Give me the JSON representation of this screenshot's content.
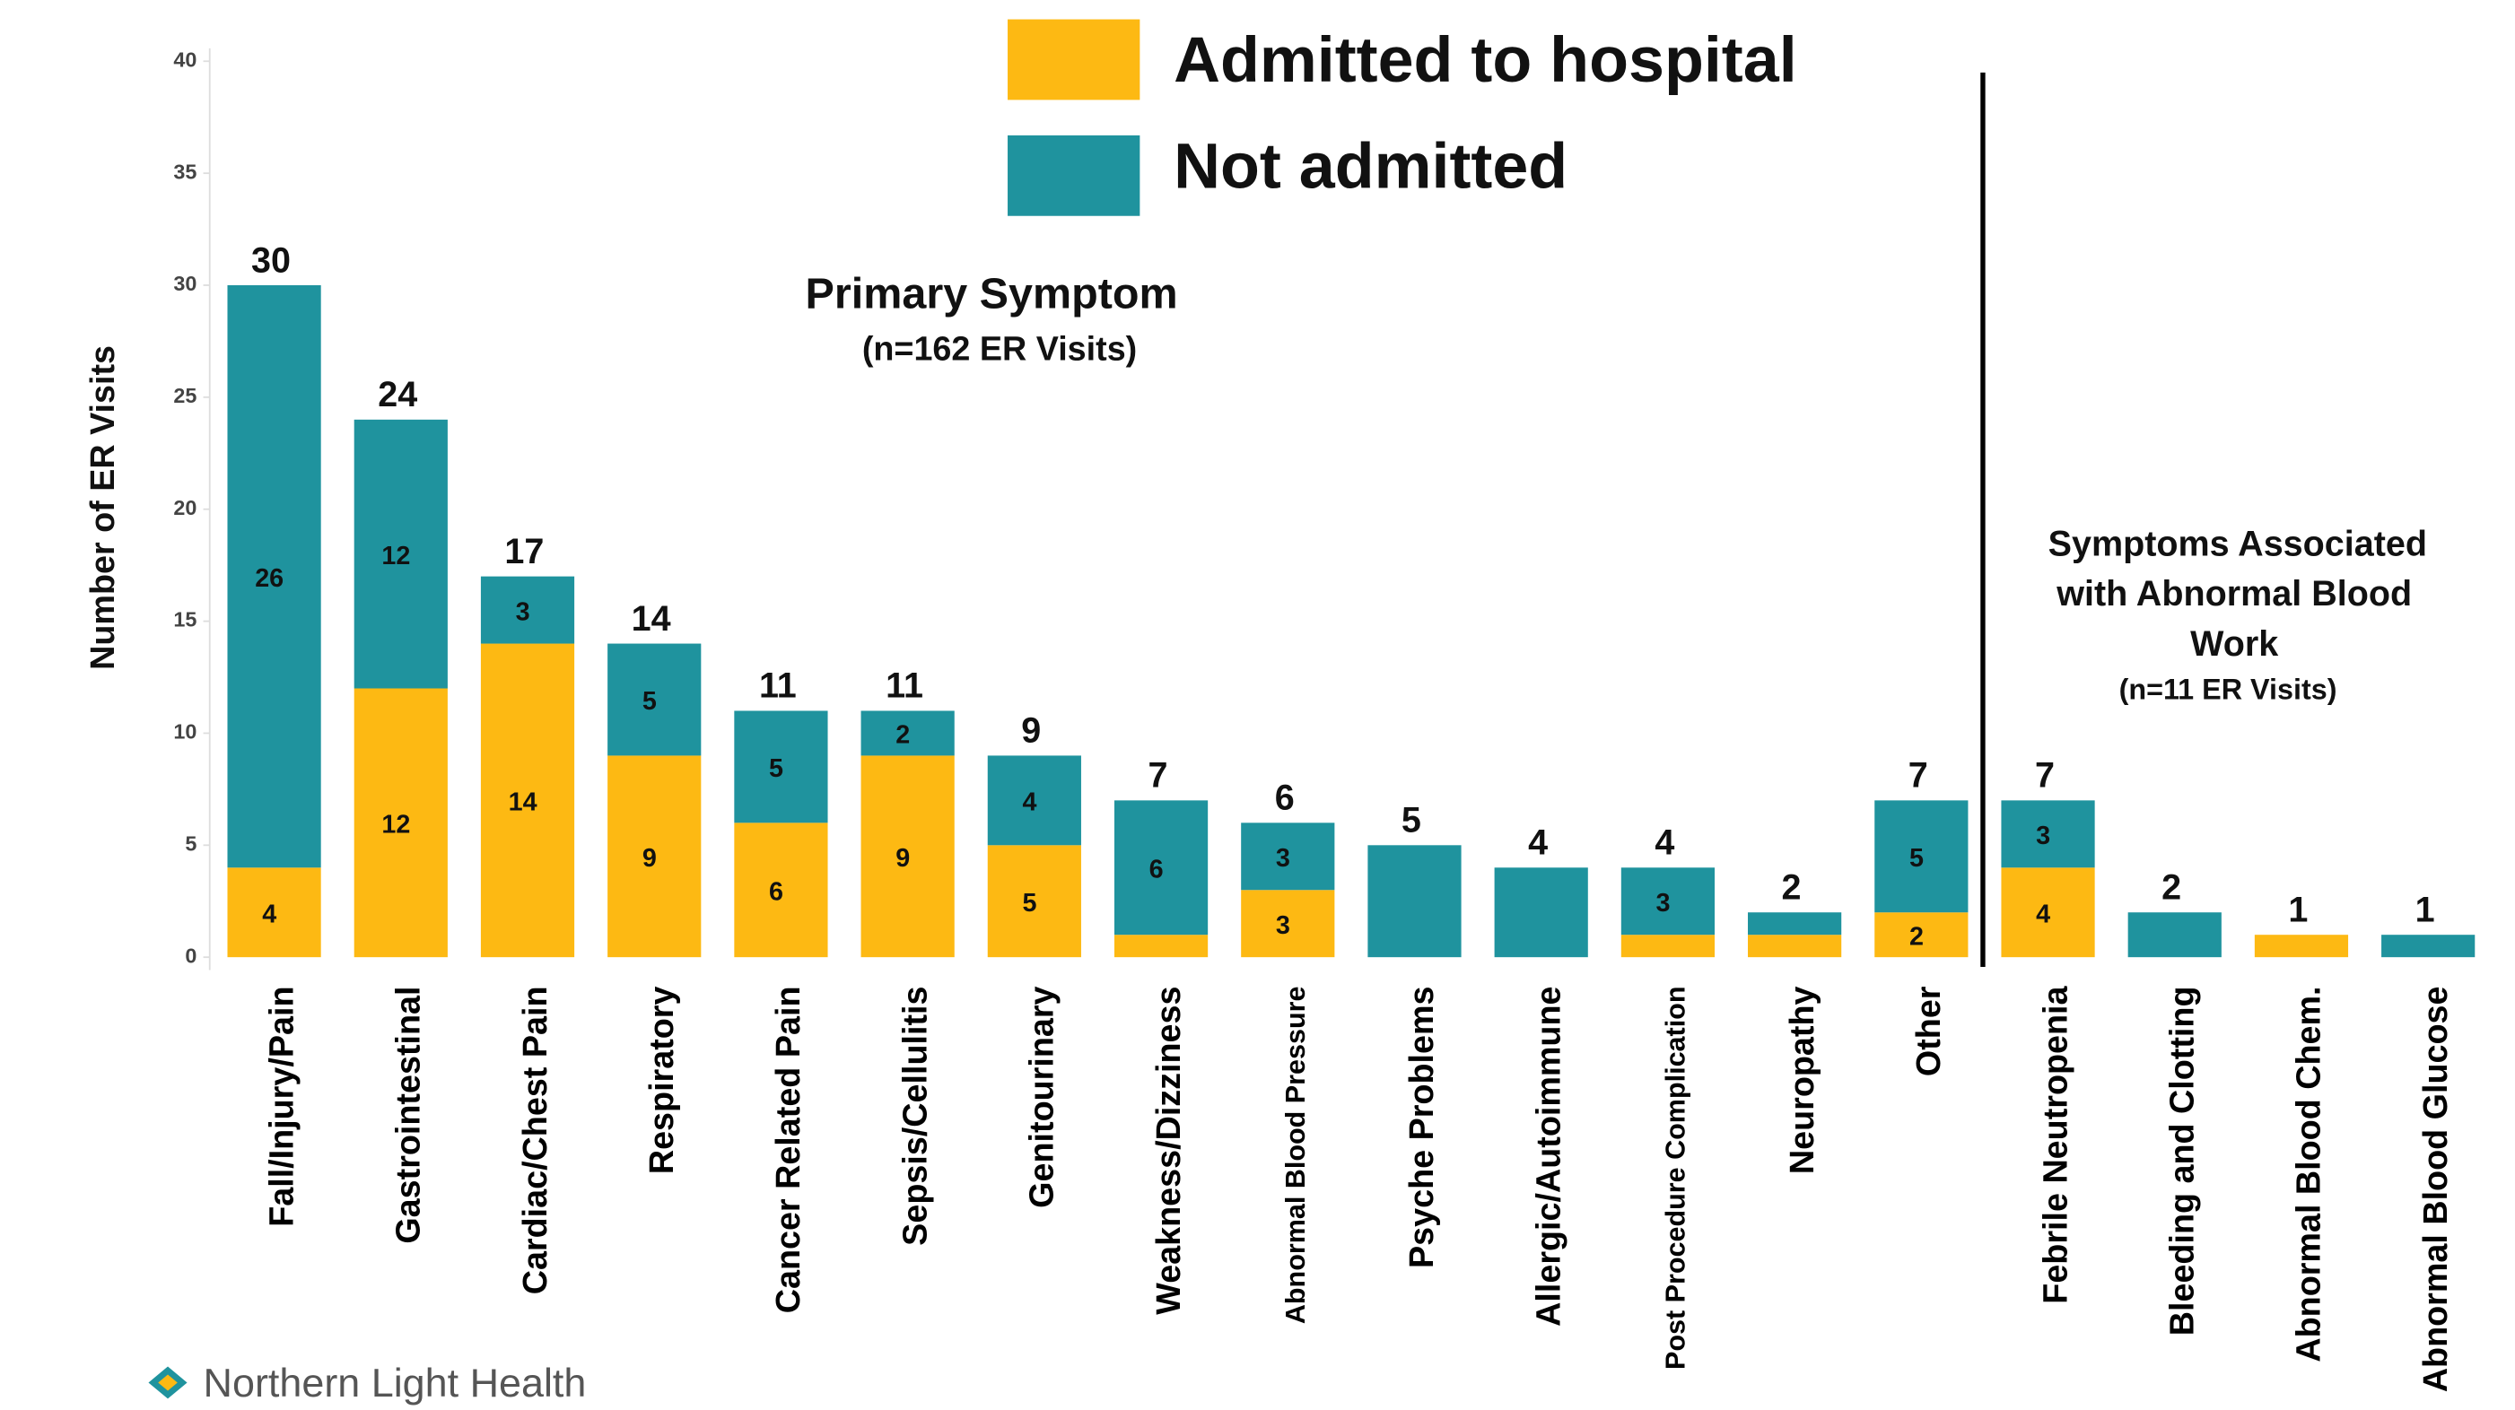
{
  "chart_data": {
    "type": "stacked_bar",
    "y_label": "Number of ER Visits",
    "annotations": [
      "Primary Symptom",
      "(n=162 ER Visits)",
      "Symptoms Associated",
      "with Abnormal Blood",
      "Work",
      "(n=11 ER Visits)"
    ],
    "source": "Northern Light Health",
    "categories": [
      "Fall/Injury/Pain",
      "Gastrointestinal",
      "Cardiac/Chest Pain",
      "Respiratory",
      "Cancer Related Pain",
      "Sepsis/Cellulitis",
      "Genitourinary",
      "Weakness/Dizziness",
      "Abnormal Blood Pressure",
      "Psyche Problems",
      "Allergic/Autoimmune",
      "Post Procedure Complication",
      "Neuropathy",
      "Other",
      "Febrile Neutropenia",
      "Bleeding and Clotting",
      "Abnormal Blood Chem.",
      "Abnormal Blood Glucose"
    ],
    "series": [
      {
        "name": "Admitted to hospital",
        "color": "#fdb913",
        "values": [
          4,
          12,
          14,
          9,
          6,
          9,
          5,
          1,
          3,
          0,
          0,
          1,
          1,
          2,
          4,
          0,
          1,
          0
        ],
        "value_labels": [
          "4",
          "12",
          "14",
          "9",
          "6",
          "9",
          "5",
          null,
          "3",
          null,
          null,
          null,
          null,
          "2",
          "4",
          null,
          null,
          null
        ]
      },
      {
        "name": "Not admitted",
        "color": "#1f939e",
        "values": [
          26,
          12,
          3,
          5,
          5,
          2,
          4,
          6,
          3,
          5,
          4,
          3,
          1,
          5,
          3,
          2,
          0,
          1
        ],
        "value_labels": [
          "26",
          "12",
          "3",
          "5",
          "5",
          "2",
          "4",
          "6",
          "3",
          null,
          null,
          "3",
          null,
          "5",
          "3",
          null,
          null,
          null
        ]
      }
    ],
    "totals": [
      30,
      24,
      17,
      14,
      11,
      11,
      9,
      7,
      6,
      5,
      4,
      4,
      2,
      7,
      7,
      2,
      1,
      1
    ],
    "ylim": [
      0,
      40
    ],
    "yticks": [
      0,
      5,
      10,
      15,
      20,
      25,
      30,
      35,
      40
    ],
    "grid": false
  }
}
